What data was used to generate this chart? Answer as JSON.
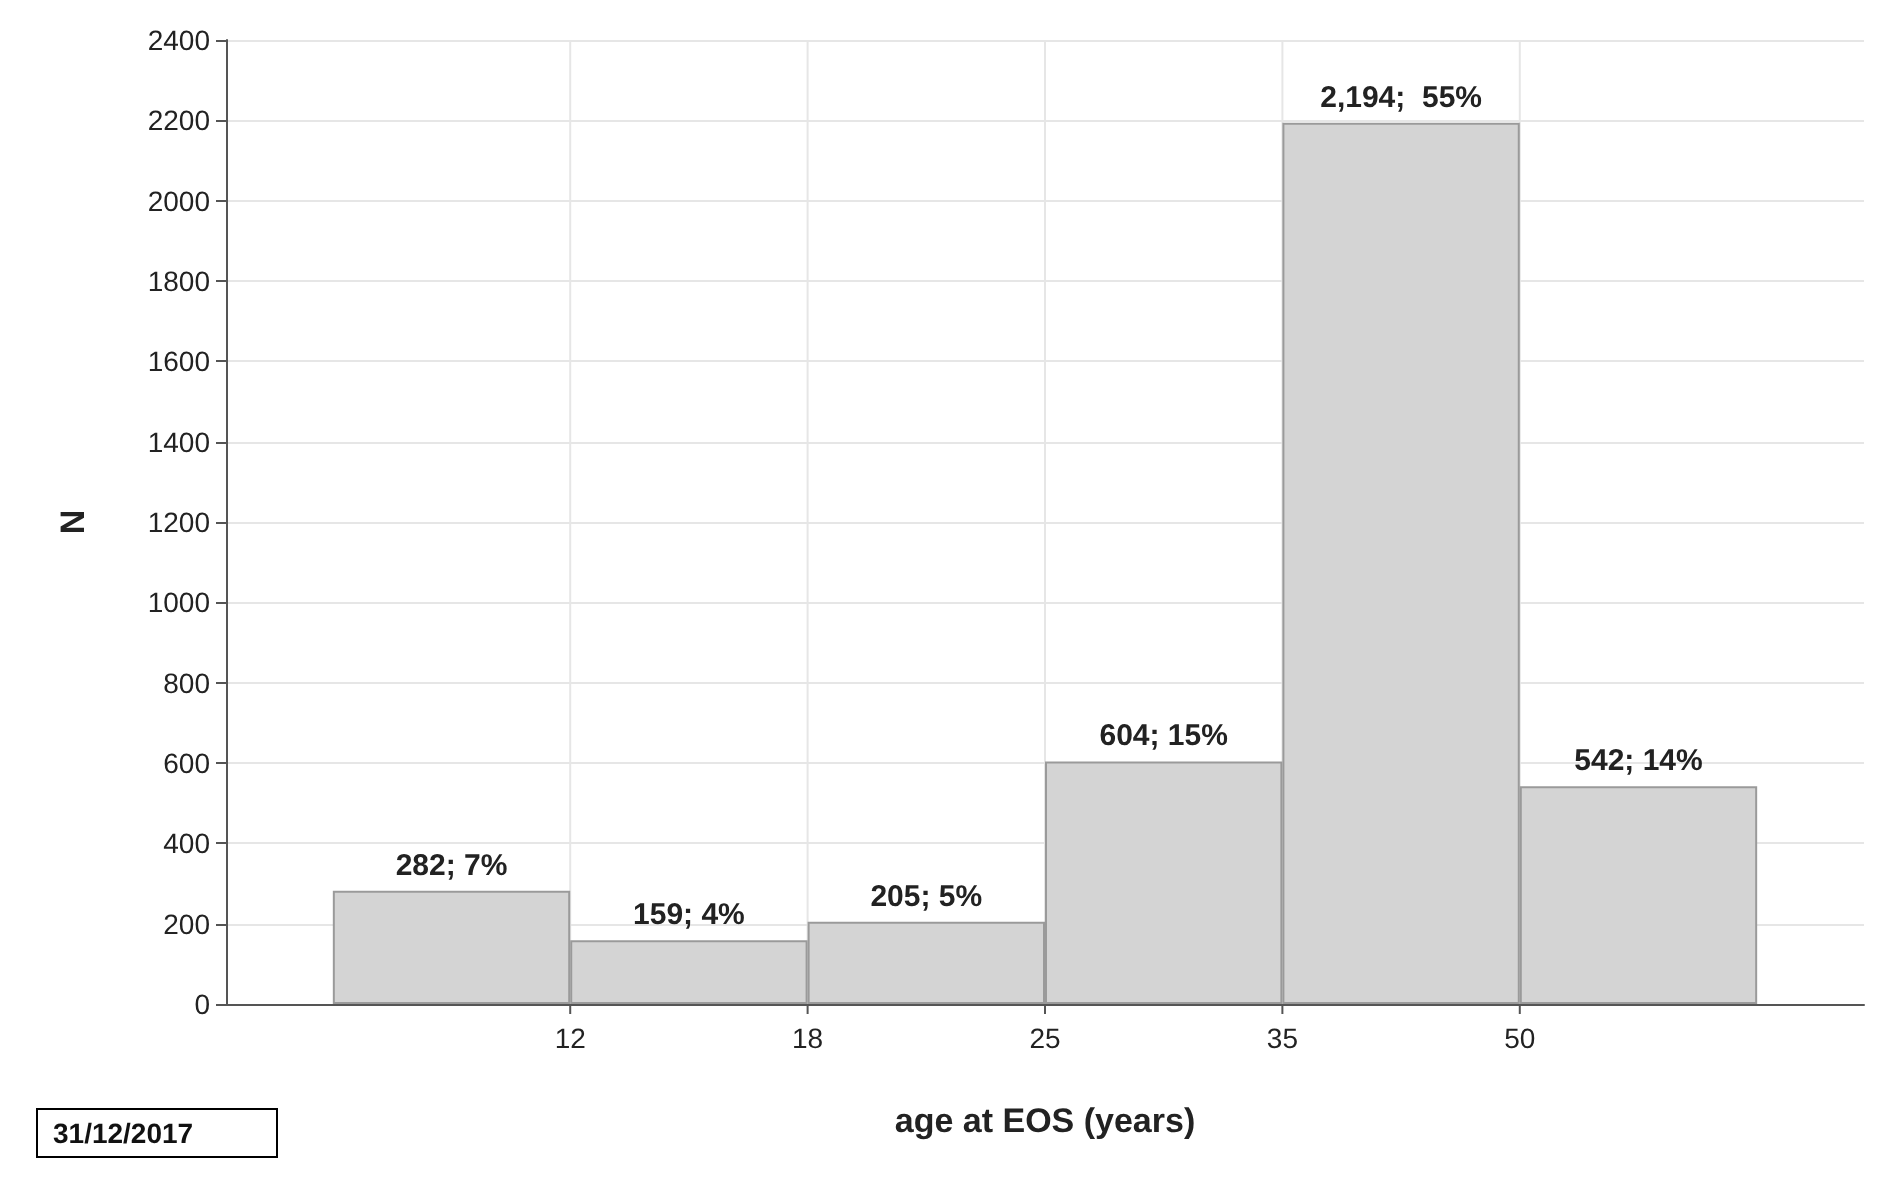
{
  "chart_data": {
    "type": "bar",
    "xlabel": "age at EOS (years)",
    "ylabel": "N",
    "categories": [
      null,
      null,
      null,
      null,
      null,
      null
    ],
    "values": [
      282,
      159,
      205,
      604,
      2194,
      542
    ],
    "value_labels": [
      "282; 7%",
      "159; 4%",
      "205; 5%",
      "604; 15%",
      "2,194;  55%",
      "542; 14%"
    ],
    "color": "#d4d4d4",
    "ylim": [
      0,
      2400
    ],
    "yticks": [
      0,
      200,
      400,
      600,
      800,
      1000,
      1200,
      1400,
      1600,
      1800,
      2000,
      2200,
      2400
    ],
    "grid": true,
    "annotations": [
      {
        "text": "12"
      },
      {
        "text": "18"
      },
      {
        "text": "25"
      },
      {
        "text": "35"
      },
      {
        "text": "50"
      },
      "31/12/2017"
    ]
  }
}
